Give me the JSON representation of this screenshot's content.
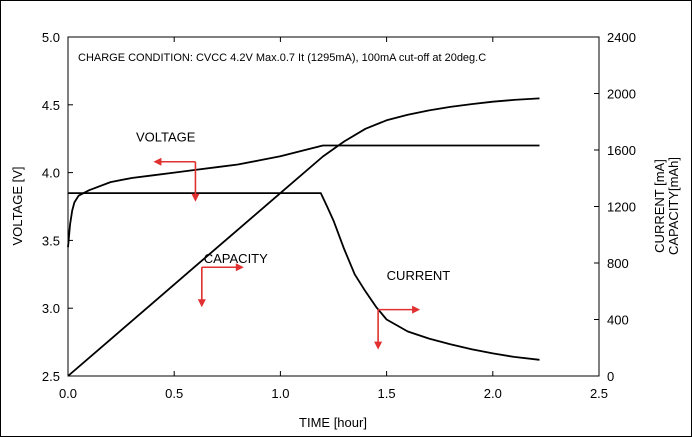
{
  "chart_data": {
    "type": "line",
    "annotation": "CHARGE CONDITION:  CVCC 4.2V Max.0.7 It (1295mA), 100mA cut-off at 20deg.C",
    "xlabel": "TIME  [hour]",
    "ylabel_left": "VOLTAGE  [V]",
    "ylabel_right_1": "CURRENT [mA]",
    "ylabel_right_2": "CAPACITY[mAh]",
    "xlim": [
      0,
      2.5
    ],
    "ylim_left": [
      2.5,
      5.0
    ],
    "ylim_right": [
      0,
      2400
    ],
    "x_ticks": [
      "0.0",
      "0.5",
      "1.0",
      "1.5",
      "2.0",
      "2.5"
    ],
    "y_left_ticks": [
      "2.5",
      "3.0",
      "3.5",
      "4.0",
      "4.5",
      "5.0"
    ],
    "y_right_ticks": [
      "0",
      "400",
      "800",
      "1200",
      "1600",
      "2000",
      "2400"
    ],
    "grid": false,
    "series": [
      {
        "name": "VOLTAGE",
        "axis": "left",
        "points": [
          [
            0.0,
            3.45
          ],
          [
            0.01,
            3.62
          ],
          [
            0.02,
            3.72
          ],
          [
            0.03,
            3.78
          ],
          [
            0.05,
            3.83
          ],
          [
            0.1,
            3.87
          ],
          [
            0.2,
            3.93
          ],
          [
            0.3,
            3.96
          ],
          [
            0.4,
            3.98
          ],
          [
            0.5,
            4.0
          ],
          [
            0.6,
            4.02
          ],
          [
            0.7,
            4.04
          ],
          [
            0.8,
            4.06
          ],
          [
            0.9,
            4.09
          ],
          [
            1.0,
            4.12
          ],
          [
            1.1,
            4.16
          ],
          [
            1.2,
            4.2
          ],
          [
            1.5,
            4.2
          ],
          [
            1.8,
            4.2
          ],
          [
            2.0,
            4.2
          ],
          [
            2.22,
            4.2
          ]
        ]
      },
      {
        "name": "CURRENT",
        "axis": "right",
        "points": [
          [
            0.0,
            1295
          ],
          [
            0.2,
            1295
          ],
          [
            0.4,
            1295
          ],
          [
            0.6,
            1295
          ],
          [
            0.8,
            1295
          ],
          [
            1.0,
            1295
          ],
          [
            1.19,
            1295
          ],
          [
            1.22,
            1200
          ],
          [
            1.25,
            1100
          ],
          [
            1.3,
            900
          ],
          [
            1.35,
            720
          ],
          [
            1.4,
            600
          ],
          [
            1.45,
            490
          ],
          [
            1.5,
            400
          ],
          [
            1.6,
            315
          ],
          [
            1.7,
            265
          ],
          [
            1.8,
            225
          ],
          [
            1.9,
            190
          ],
          [
            2.0,
            160
          ],
          [
            2.1,
            135
          ],
          [
            2.22,
            115
          ]
        ]
      },
      {
        "name": "CAPACITY",
        "axis": "right",
        "points": [
          [
            0.0,
            0
          ],
          [
            0.2,
            259
          ],
          [
            0.4,
            518
          ],
          [
            0.6,
            777
          ],
          [
            0.8,
            1036
          ],
          [
            1.0,
            1295
          ],
          [
            1.2,
            1554
          ],
          [
            1.3,
            1660
          ],
          [
            1.4,
            1750
          ],
          [
            1.5,
            1810
          ],
          [
            1.6,
            1850
          ],
          [
            1.7,
            1880
          ],
          [
            1.8,
            1905
          ],
          [
            1.9,
            1925
          ],
          [
            2.0,
            1942
          ],
          [
            2.1,
            1955
          ],
          [
            2.22,
            1965
          ]
        ]
      }
    ],
    "labels": [
      {
        "text": "VOLTAGE",
        "at": [
          0.46,
          4.23
        ]
      },
      {
        "text": "CAPACITY",
        "at": [
          0.79,
          800
        ]
      },
      {
        "text": "CURRENT",
        "at": [
          1.65,
          680
        ]
      }
    ]
  }
}
